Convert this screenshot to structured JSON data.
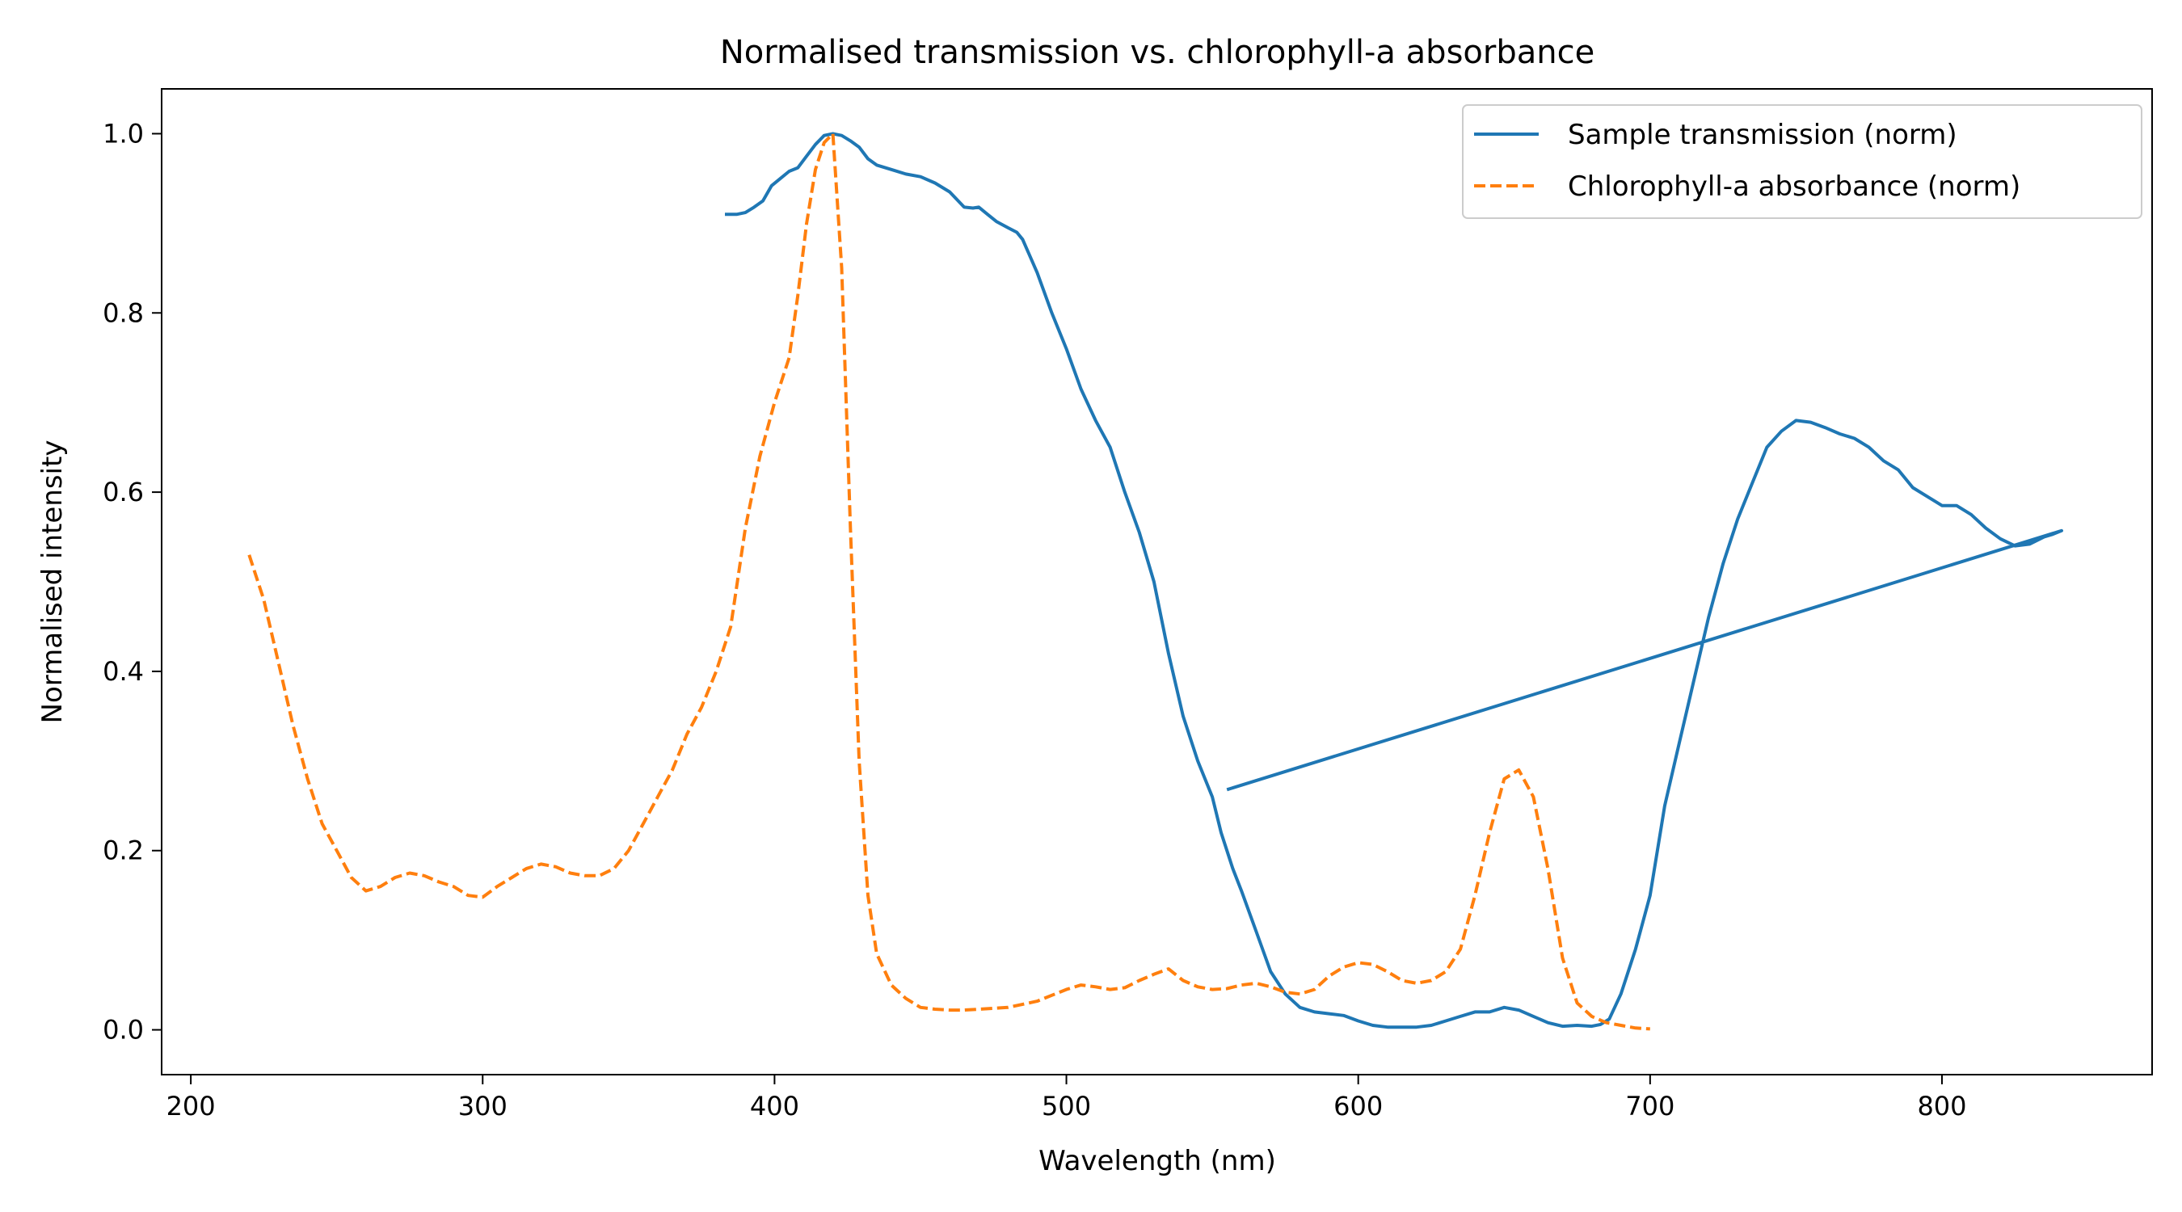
{
  "chart_data": {
    "type": "line",
    "title": "Normalised transmission vs. chlorophyll-a absorbance",
    "xlabel": "Wavelength (nm)",
    "ylabel": "Normalised intensity",
    "xlim": [
      190,
      872
    ],
    "ylim": [
      -0.05,
      1.05
    ],
    "xticks": [
      200,
      300,
      400,
      500,
      600,
      700,
      800
    ],
    "yticks": [
      0.0,
      0.2,
      0.4,
      0.6,
      0.8,
      1.0
    ],
    "xtick_labels": [
      "200",
      "300",
      "400",
      "500",
      "600",
      "700",
      "800"
    ],
    "ytick_labels": [
      "0.0",
      "0.2",
      "0.4",
      "0.6",
      "0.8",
      "1.0"
    ],
    "grid": false,
    "legend_position": "top-right",
    "series": [
      {
        "name": "Sample transmission (norm)",
        "color": "#1f77b4",
        "style": "solid",
        "x": [
          383,
          387,
          390,
          393,
          396,
          399,
          402,
          405,
          408,
          411,
          414,
          417,
          420,
          423,
          426,
          429,
          432,
          435,
          440,
          445,
          450,
          455,
          460,
          465,
          468,
          470,
          473,
          476,
          480,
          483,
          485,
          490,
          495,
          500,
          505,
          510,
          515,
          520,
          525,
          530,
          535,
          540,
          545,
          550,
          553,
          557,
          560,
          565,
          570,
          575,
          580,
          585,
          590,
          595,
          600,
          605,
          610,
          615,
          620,
          625,
          630,
          635,
          640,
          645,
          650,
          655,
          660,
          665,
          670,
          675,
          680,
          683,
          686,
          690,
          695,
          700,
          705,
          710,
          715,
          720,
          725,
          730,
          735,
          740,
          745,
          750,
          755,
          760,
          765,
          770,
          775,
          780,
          785,
          790,
          795,
          800,
          805,
          810,
          815,
          820,
          825,
          830,
          835,
          838,
          841,
          555
        ],
        "y": [
          0.91,
          0.91,
          0.912,
          0.918,
          0.925,
          0.942,
          0.95,
          0.958,
          0.962,
          0.975,
          0.988,
          0.998,
          1.0,
          0.998,
          0.992,
          0.985,
          0.972,
          0.965,
          0.96,
          0.955,
          0.952,
          0.945,
          0.935,
          0.918,
          0.917,
          0.918,
          0.91,
          0.902,
          0.895,
          0.89,
          0.882,
          0.845,
          0.8,
          0.76,
          0.715,
          0.68,
          0.65,
          0.6,
          0.555,
          0.5,
          0.42,
          0.35,
          0.3,
          0.26,
          0.22,
          0.18,
          0.155,
          0.11,
          0.065,
          0.04,
          0.025,
          0.02,
          0.018,
          0.016,
          0.01,
          0.005,
          0.003,
          0.003,
          0.003,
          0.005,
          0.01,
          0.015,
          0.02,
          0.02,
          0.025,
          0.022,
          0.015,
          0.008,
          0.004,
          0.005,
          0.004,
          0.006,
          0.012,
          0.04,
          0.09,
          0.15,
          0.25,
          0.32,
          0.39,
          0.46,
          0.52,
          0.57,
          0.61,
          0.65,
          0.668,
          0.68,
          0.678,
          0.672,
          0.665,
          0.66,
          0.65,
          0.635,
          0.625,
          0.605,
          0.595,
          0.585,
          0.585,
          0.575,
          0.56,
          0.548,
          0.54,
          0.542,
          0.55,
          0.553,
          0.557,
          0.268
        ]
      },
      {
        "name": "Chlorophyll-a absorbance (norm)",
        "color": "#ff7f0e",
        "style": "dashed",
        "x": [
          220,
          225,
          230,
          235,
          240,
          245,
          250,
          255,
          260,
          265,
          270,
          275,
          280,
          285,
          290,
          295,
          300,
          305,
          310,
          315,
          320,
          325,
          330,
          335,
          340,
          345,
          350,
          355,
          360,
          365,
          370,
          375,
          380,
          385,
          390,
          395,
          400,
          405,
          408,
          411,
          414,
          417,
          420,
          423,
          426,
          429,
          432,
          435,
          440,
          445,
          450,
          455,
          460,
          465,
          470,
          480,
          490,
          500,
          505,
          510,
          515,
          520,
          525,
          530,
          535,
          540,
          545,
          550,
          555,
          560,
          565,
          570,
          575,
          580,
          585,
          590,
          595,
          600,
          605,
          610,
          615,
          620,
          625,
          630,
          635,
          640,
          645,
          650,
          655,
          660,
          665,
          670,
          675,
          680,
          685,
          690,
          695,
          700
        ],
        "y": [
          0.53,
          0.48,
          0.41,
          0.34,
          0.28,
          0.23,
          0.2,
          0.17,
          0.155,
          0.16,
          0.17,
          0.175,
          0.172,
          0.165,
          0.16,
          0.15,
          0.148,
          0.16,
          0.17,
          0.18,
          0.185,
          0.182,
          0.175,
          0.172,
          0.172,
          0.18,
          0.2,
          0.23,
          0.26,
          0.29,
          0.33,
          0.36,
          0.4,
          0.45,
          0.56,
          0.64,
          0.7,
          0.75,
          0.82,
          0.9,
          0.96,
          0.99,
          1.0,
          0.85,
          0.56,
          0.3,
          0.15,
          0.085,
          0.05,
          0.035,
          0.025,
          0.023,
          0.022,
          0.022,
          0.023,
          0.025,
          0.032,
          0.045,
          0.05,
          0.048,
          0.045,
          0.047,
          0.055,
          0.062,
          0.068,
          0.055,
          0.048,
          0.045,
          0.046,
          0.05,
          0.052,
          0.048,
          0.042,
          0.04,
          0.045,
          0.06,
          0.07,
          0.075,
          0.073,
          0.065,
          0.055,
          0.052,
          0.055,
          0.065,
          0.09,
          0.15,
          0.22,
          0.28,
          0.29,
          0.26,
          0.18,
          0.08,
          0.03,
          0.015,
          0.008,
          0.005,
          0.002,
          0.001
        ]
      }
    ]
  }
}
